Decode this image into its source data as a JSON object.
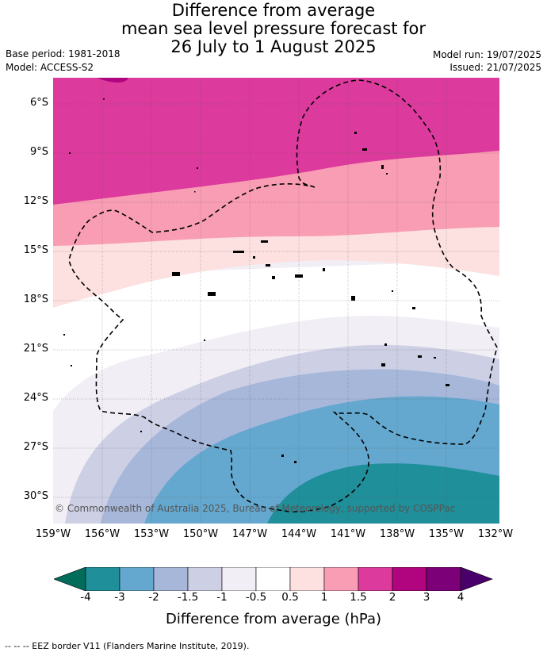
{
  "title": {
    "line1": "Difference from average",
    "line2": "mean sea level pressure forecast for",
    "line3": "26 July to 1 August 2025"
  },
  "meta": {
    "base_period": "Base period: 1981-2018",
    "model": "Model: ACCESS-S2",
    "model_run": "Model run: 19/07/2025",
    "issued": "Issued: 21/07/2025"
  },
  "axes": {
    "lat_ticks": [
      "6°S",
      "9°S",
      "12°S",
      "15°S",
      "18°S",
      "21°S",
      "24°S",
      "27°S",
      "30°S"
    ],
    "lon_ticks": [
      "159°W",
      "156°W",
      "153°W",
      "150°W",
      "147°W",
      "144°W",
      "141°W",
      "138°W",
      "135°W",
      "132°W"
    ]
  },
  "copyright": "© Commonwealth of Australia 2025, Bureau of Meteorology, supported by COSPPac",
  "colorbar": {
    "labels": [
      "-4",
      "-3",
      "-2",
      "-1.5",
      "-1",
      "-0.5",
      "0.5",
      "1",
      "1.5",
      "2",
      "3",
      "4"
    ],
    "colors": [
      "#1f8f9a",
      "#64a8cf",
      "#a7b7da",
      "#cdd0e5",
      "#f2eef5",
      "#ffffff",
      "#fde0e0",
      "#f89db3",
      "#dc3a9c",
      "#b0057e",
      "#7c0077"
    ],
    "extend_low_color": "#016c59",
    "extend_high_color": "#49006a",
    "title": "Difference from average (hPa)"
  },
  "footer": "--  --  -- EEZ border V11 (Flanders Marine Institute, 2019)."
}
